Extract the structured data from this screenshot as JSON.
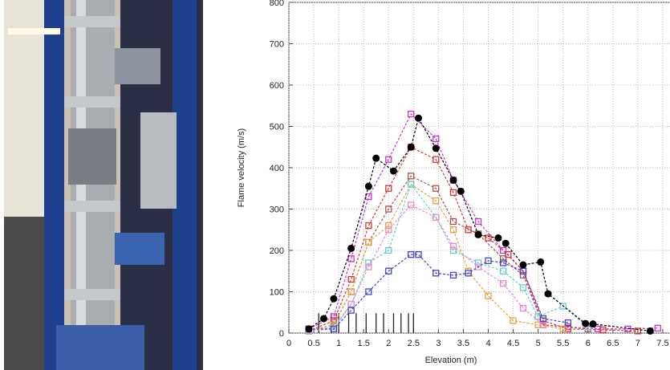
{
  "chart_data": {
    "type": "line",
    "xlabel": "Elevation (m)",
    "ylabel": "Flame velocity (m/s)",
    "xlim": [
      0,
      8
    ],
    "ylim": [
      0,
      800
    ],
    "xticks": [
      0,
      0.5,
      1,
      1.5,
      2,
      2.5,
      3,
      3.5,
      4,
      4.5,
      5,
      5.5,
      6,
      6.5,
      7,
      7.5
    ],
    "yticks": [
      0,
      100,
      200,
      300,
      400,
      500,
      600,
      700,
      800
    ],
    "grid": true,
    "vlines": [
      0.6,
      0.85,
      1.0,
      1.2,
      1.35,
      1.55,
      1.75,
      1.9,
      2.1,
      2.25,
      2.4,
      2.5
    ],
    "vline_height": 48,
    "series": [
      {
        "color": "#cc33cc",
        "marker": "square",
        "x": [
          0.4,
          0.9,
          1.25,
          1.6,
          2.0,
          2.45,
          2.95,
          3.3,
          3.8,
          4.3,
          4.7,
          5.1,
          5.6,
          6.2,
          6.8,
          7.4
        ],
        "values": [
          10,
          40,
          180,
          330,
          420,
          530,
          470,
          370,
          270,
          200,
          150,
          20,
          15,
          10,
          10,
          12
        ]
      },
      {
        "color": "#dd3333",
        "marker": "square",
        "x": [
          0.4,
          0.9,
          1.25,
          1.6,
          2.0,
          2.45,
          2.95,
          3.3,
          3.6,
          4.0,
          4.4,
          4.7,
          5.1,
          5.6,
          6.3,
          7.0
        ],
        "values": [
          5,
          30,
          130,
          260,
          350,
          450,
          420,
          340,
          250,
          230,
          190,
          150,
          30,
          10,
          8,
          5
        ]
      },
      {
        "color": "#aa5555",
        "marker": "square",
        "x": [
          0.4,
          0.9,
          1.25,
          1.6,
          2.0,
          2.45,
          2.95,
          3.3,
          3.8,
          4.3,
          4.7,
          5.1,
          6.0
        ],
        "values": [
          5,
          20,
          100,
          220,
          300,
          380,
          350,
          270,
          240,
          180,
          140,
          20,
          10
        ]
      },
      {
        "color": "#e8a040",
        "marker": "square",
        "x": [
          0.4,
          0.9,
          1.25,
          1.6,
          2.0,
          2.45,
          2.95,
          3.3,
          3.6,
          4.0,
          4.5,
          5.0,
          5.5
        ],
        "values": [
          5,
          20,
          100,
          220,
          260,
          360,
          320,
          250,
          150,
          90,
          30,
          20,
          10
        ]
      },
      {
        "color": "#66cccc",
        "marker": "square",
        "x": [
          0.4,
          0.9,
          1.25,
          1.6,
          2.0,
          2.45,
          2.95,
          3.3,
          3.8,
          4.3,
          4.7,
          5.0,
          5.5,
          6.0
        ],
        "values": [
          5,
          15,
          70,
          170,
          200,
          360,
          280,
          200,
          170,
          150,
          110,
          40,
          65,
          15
        ]
      },
      {
        "color": "#ee88cc",
        "marker": "square",
        "x": [
          0.4,
          0.9,
          1.25,
          1.6,
          2.0,
          2.45,
          2.95,
          3.3,
          3.8,
          4.3,
          4.7,
          5.1
        ],
        "values": [
          5,
          10,
          70,
          160,
          250,
          310,
          280,
          210,
          160,
          120,
          60,
          20
        ]
      },
      {
        "color": "#4444cc",
        "marker": "square",
        "x": [
          0.4,
          0.9,
          1.25,
          1.6,
          2.0,
          2.45,
          2.6,
          2.95,
          3.3,
          3.6,
          4.0,
          4.3,
          4.7,
          5.1,
          5.6
        ],
        "values": [
          10,
          10,
          55,
          100,
          150,
          190,
          190,
          145,
          140,
          145,
          175,
          170,
          150,
          35,
          25
        ]
      },
      {
        "color": "#000000",
        "marker": "circle",
        "x": [
          0.4,
          0.7,
          0.9,
          1.25,
          1.6,
          1.75,
          2.1,
          2.45,
          2.6,
          2.95,
          3.3,
          3.45,
          3.8,
          4.2,
          4.35,
          4.7,
          5.05,
          5.2,
          5.95,
          6.1,
          7.25
        ],
        "values": [
          10,
          35,
          83,
          205,
          355,
          423,
          392,
          450,
          520,
          447,
          370,
          343,
          238,
          230,
          217,
          165,
          172,
          95,
          23,
          22,
          5
        ]
      }
    ]
  }
}
